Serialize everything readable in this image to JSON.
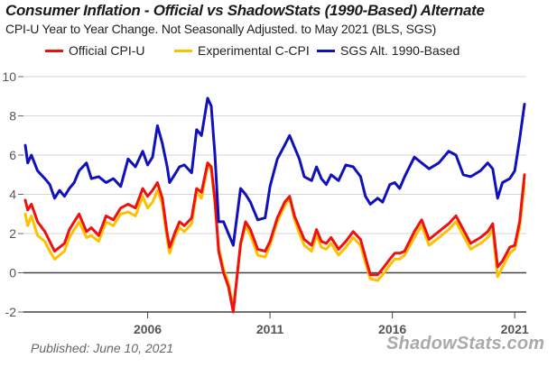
{
  "chart_data": {
    "type": "line",
    "title": "Consumer Inflation - Official vs ShadowStats (1990-Based) Alternate",
    "subtitle": "CPI-U Year to Year Change. Not Seasonally Adjusted. to May 2021  (BLS, SGS)",
    "xlabel": "",
    "ylabel": "",
    "xlim": [
      2001.0,
      2021.4
    ],
    "ylim": [
      -2,
      10
    ],
    "yticks": [
      10,
      8,
      6,
      4,
      2,
      0,
      -2
    ],
    "ytick_labels": [
      "10",
      "8",
      "6",
      "4",
      "2",
      "0",
      "-2"
    ],
    "xticks": [
      2006,
      2011,
      2016,
      2021
    ],
    "xtick_labels": [
      "2006",
      "2011",
      "2016",
      "2021"
    ],
    "grid": true,
    "legend_position": "top",
    "series": [
      {
        "name": "Official CPI-U",
        "color": "#ee1111",
        "x": [
          2001.0,
          2001.1,
          2001.25,
          2001.5,
          2001.8,
          2002.0,
          2002.2,
          2002.4,
          2002.6,
          2002.8,
          2003.0,
          2003.2,
          2003.5,
          2003.7,
          2004.0,
          2004.3,
          2004.6,
          2004.9,
          2005.2,
          2005.5,
          2005.8,
          2006.0,
          2006.2,
          2006.4,
          2006.6,
          2006.8,
          2006.9,
          2007.1,
          2007.3,
          2007.5,
          2007.8,
          2008.0,
          2008.2,
          2008.45,
          2008.6,
          2008.75,
          2008.9,
          2009.1,
          2009.3,
          2009.5,
          2009.8,
          2010.0,
          2010.2,
          2010.5,
          2010.8,
          2011.0,
          2011.3,
          2011.6,
          2011.8,
          2012.0,
          2012.2,
          2012.4,
          2012.7,
          2012.9,
          2013.1,
          2013.3,
          2013.5,
          2013.8,
          2014.1,
          2014.4,
          2014.7,
          2014.9,
          2015.1,
          2015.4,
          2015.6,
          2015.9,
          2016.1,
          2016.3,
          2016.5,
          2016.9,
          2017.2,
          2017.5,
          2017.9,
          2018.3,
          2018.6,
          2018.9,
          2019.2,
          2019.6,
          2019.9,
          2020.1,
          2020.3,
          2020.5,
          2020.8,
          2021.0,
          2021.2,
          2021.4
        ],
        "values": [
          3.7,
          3.2,
          3.5,
          2.6,
          2.1,
          1.6,
          1.1,
          1.3,
          1.5,
          2.2,
          2.6,
          3.0,
          2.1,
          2.3,
          1.9,
          2.9,
          2.7,
          3.3,
          3.5,
          3.3,
          4.3,
          3.9,
          4.2,
          4.6,
          3.8,
          2.0,
          1.3,
          2.0,
          2.6,
          2.4,
          2.8,
          4.3,
          4.1,
          5.6,
          5.4,
          3.7,
          1.1,
          0.0,
          -0.7,
          -2.0,
          1.5,
          2.6,
          2.2,
          1.2,
          1.1,
          1.6,
          2.8,
          3.6,
          3.9,
          2.9,
          2.3,
          1.7,
          1.4,
          2.2,
          1.6,
          1.5,
          1.8,
          1.2,
          1.6,
          2.1,
          1.7,
          0.8,
          -0.1,
          -0.1,
          0.2,
          0.7,
          1.0,
          1.0,
          1.1,
          2.1,
          2.7,
          1.7,
          2.1,
          2.5,
          2.9,
          2.2,
          1.5,
          1.8,
          2.1,
          2.5,
          0.3,
          0.6,
          1.3,
          1.4,
          2.6,
          5.0
        ]
      },
      {
        "name": "Experimental C-CPI",
        "color": "#ffc000",
        "x": [
          2001.0,
          2001.1,
          2001.25,
          2001.5,
          2001.8,
          2002.0,
          2002.2,
          2002.4,
          2002.6,
          2002.8,
          2003.0,
          2003.2,
          2003.5,
          2003.7,
          2004.0,
          2004.3,
          2004.6,
          2004.9,
          2005.2,
          2005.5,
          2005.8,
          2006.0,
          2006.2,
          2006.4,
          2006.6,
          2006.8,
          2006.9,
          2007.1,
          2007.3,
          2007.5,
          2007.8,
          2008.0,
          2008.2,
          2008.45,
          2008.6,
          2008.75,
          2008.9,
          2009.1,
          2009.3,
          2009.5,
          2009.8,
          2010.0,
          2010.2,
          2010.5,
          2010.8,
          2011.0,
          2011.3,
          2011.6,
          2011.8,
          2012.0,
          2012.2,
          2012.4,
          2012.7,
          2012.9,
          2013.1,
          2013.3,
          2013.5,
          2013.8,
          2014.1,
          2014.4,
          2014.7,
          2014.9,
          2015.1,
          2015.4,
          2015.6,
          2015.9,
          2016.1,
          2016.3,
          2016.5,
          2016.9,
          2017.2,
          2017.5,
          2017.9,
          2018.3,
          2018.6,
          2018.9,
          2019.2,
          2019.6,
          2019.9,
          2020.1,
          2020.3,
          2020.5,
          2020.8,
          2021.0,
          2021.2,
          2021.4
        ],
        "values": [
          3.0,
          2.4,
          2.9,
          1.9,
          1.6,
          1.1,
          0.7,
          0.9,
          1.1,
          1.8,
          2.2,
          2.6,
          1.8,
          1.9,
          1.6,
          2.6,
          2.4,
          3.0,
          3.1,
          2.9,
          3.9,
          3.3,
          3.6,
          4.2,
          3.5,
          1.7,
          1.0,
          1.8,
          2.3,
          2.1,
          2.5,
          4.1,
          3.8,
          5.4,
          5.3,
          3.5,
          1.3,
          0.2,
          -0.5,
          -1.8,
          1.4,
          2.4,
          1.9,
          0.9,
          0.8,
          1.4,
          2.6,
          3.4,
          3.8,
          2.7,
          2.0,
          1.4,
          1.1,
          1.9,
          1.3,
          1.2,
          1.5,
          0.9,
          1.3,
          1.8,
          1.4,
          0.5,
          -0.3,
          -0.4,
          -0.1,
          0.4,
          0.7,
          0.7,
          0.9,
          1.8,
          2.4,
          1.4,
          1.8,
          2.2,
          2.6,
          1.9,
          1.2,
          1.5,
          1.8,
          2.2,
          -0.2,
          0.3,
          1.0,
          1.2,
          2.3,
          4.6
        ]
      },
      {
        "name": "SGS  Alt. 1990-Based",
        "color": "#1111bb",
        "x": [
          2001.0,
          2001.1,
          2001.25,
          2001.5,
          2001.8,
          2002.0,
          2002.2,
          2002.4,
          2002.6,
          2002.8,
          2003.0,
          2003.2,
          2003.5,
          2003.7,
          2004.0,
          2004.3,
          2004.6,
          2004.9,
          2005.2,
          2005.5,
          2005.8,
          2006.0,
          2006.2,
          2006.4,
          2006.6,
          2006.8,
          2006.9,
          2007.1,
          2007.3,
          2007.5,
          2007.8,
          2008.0,
          2008.2,
          2008.45,
          2008.6,
          2008.75,
          2008.9,
          2009.1,
          2009.3,
          2009.5,
          2009.8,
          2010.0,
          2010.2,
          2010.5,
          2010.8,
          2011.0,
          2011.3,
          2011.6,
          2011.8,
          2012.0,
          2012.2,
          2012.4,
          2012.7,
          2012.9,
          2013.1,
          2013.3,
          2013.5,
          2013.8,
          2014.1,
          2014.4,
          2014.7,
          2014.9,
          2015.1,
          2015.4,
          2015.6,
          2015.9,
          2016.1,
          2016.3,
          2016.5,
          2016.9,
          2017.2,
          2017.5,
          2017.9,
          2018.3,
          2018.6,
          2018.9,
          2019.2,
          2019.6,
          2019.9,
          2020.1,
          2020.3,
          2020.5,
          2020.8,
          2021.0,
          2021.2,
          2021.4
        ],
        "values": [
          6.5,
          5.6,
          6.0,
          5.2,
          4.8,
          4.5,
          3.8,
          4.2,
          3.9,
          4.3,
          4.6,
          5.2,
          5.6,
          4.8,
          4.9,
          4.6,
          4.8,
          4.4,
          5.8,
          5.4,
          6.2,
          5.5,
          5.9,
          7.5,
          6.6,
          5.4,
          4.6,
          5.0,
          5.4,
          5.5,
          5.1,
          7.3,
          7.0,
          8.9,
          8.5,
          6.0,
          2.6,
          2.6,
          2.0,
          1.4,
          4.3,
          4.0,
          3.6,
          2.7,
          2.8,
          4.4,
          5.8,
          6.5,
          7.0,
          6.4,
          5.8,
          4.9,
          4.7,
          5.4,
          4.8,
          4.5,
          5.0,
          4.7,
          5.5,
          5.4,
          4.9,
          3.9,
          3.5,
          3.8,
          3.6,
          4.5,
          4.6,
          4.3,
          4.9,
          5.9,
          5.6,
          5.3,
          5.6,
          6.2,
          6.0,
          5.0,
          4.9,
          5.2,
          5.6,
          5.3,
          3.8,
          4.6,
          4.8,
          5.2,
          6.8,
          8.6
        ]
      }
    ]
  },
  "footer": {
    "published": "Published: June 10, 2021",
    "brand": "ShadowStats.com"
  }
}
